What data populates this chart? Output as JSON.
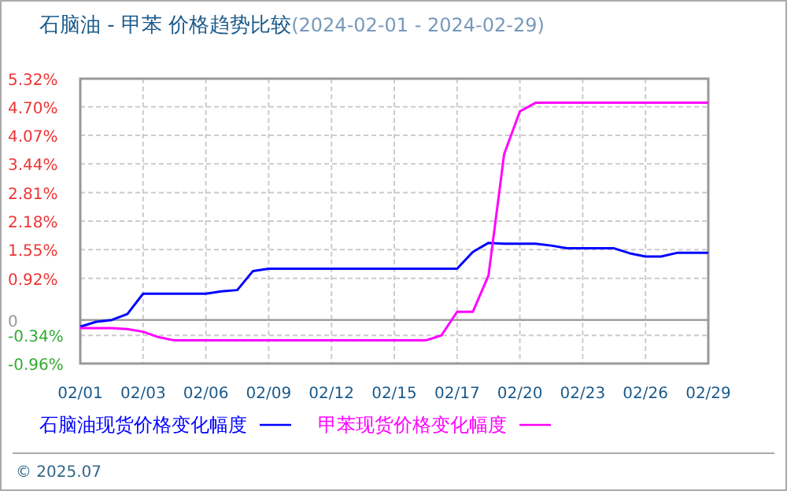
{
  "chart_data": {
    "type": "line",
    "title": "石脑油 - 甲苯 价格趋势比较",
    "subtitle": "(2024-02-01 - 2024-02-29)",
    "categories": [
      "02/01",
      null,
      null,
      null,
      "02/03",
      null,
      null,
      null,
      "02/06",
      null,
      null,
      null,
      "02/09",
      null,
      null,
      null,
      "02/12",
      null,
      null,
      null,
      "02/15",
      null,
      null,
      null,
      "02/17",
      null,
      null,
      null,
      "02/20",
      null,
      null,
      null,
      "02/23",
      null,
      null,
      null,
      "02/26",
      null,
      null,
      null,
      "02/29"
    ],
    "series": [
      {
        "name": "石脑油现货价格变化幅度",
        "color": "#0000ff",
        "values": [
          -0.15,
          -0.04,
          0,
          0.13,
          0.58,
          0.58,
          0.58,
          0.58,
          0.58,
          0.63,
          0.66,
          1.08,
          1.13,
          1.13,
          1.13,
          1.13,
          1.13,
          1.13,
          1.13,
          1.13,
          1.13,
          1.13,
          1.13,
          1.13,
          1.13,
          1.5,
          1.7,
          1.68,
          1.68,
          1.68,
          1.64,
          1.58,
          1.58,
          1.58,
          1.58,
          1.47,
          1.4,
          1.4,
          1.48,
          1.48,
          1.48
        ]
      },
      {
        "name": "甲苯现货价格变化幅度",
        "color": "#ff00ff",
        "values": [
          -0.18,
          -0.18,
          -0.18,
          -0.2,
          -0.26,
          -0.38,
          -0.45,
          -0.45,
          -0.45,
          -0.45,
          -0.45,
          -0.45,
          -0.45,
          -0.45,
          -0.45,
          -0.45,
          -0.45,
          -0.45,
          -0.45,
          -0.45,
          -0.45,
          -0.45,
          -0.45,
          -0.34,
          0.18,
          0.18,
          0.98,
          3.66,
          4.6,
          4.79,
          4.79,
          4.79,
          4.79,
          4.79,
          4.79,
          4.79,
          4.79,
          4.79,
          4.79,
          4.79,
          4.79
        ]
      }
    ],
    "ylim": [
      -0.96,
      5.32
    ],
    "yticks": [
      {
        "value": -0.96,
        "label": "-0.96%"
      },
      {
        "value": -0.34,
        "label": "-0.34%"
      },
      0,
      {
        "value": 0.92,
        "label": "0.92%"
      },
      {
        "value": 1.55,
        "label": "1.55%"
      },
      {
        "value": 2.18,
        "label": "2.18%"
      },
      {
        "value": 2.81,
        "label": "2.81%"
      },
      {
        "value": 3.44,
        "label": "3.44%"
      },
      {
        "value": 4.07,
        "label": "4.07%"
      },
      {
        "value": 4.7,
        "label": "4.70%"
      },
      {
        "value": 5.32,
        "label": "5.32%"
      }
    ],
    "ref_lines": [
      {
        "axis": "y",
        "value": 0,
        "color": "#999999"
      }
    ],
    "grid": true,
    "legend": "bottom",
    "line_style": "solid",
    "marker": "none",
    "annotations": [
      "© 2025.07"
    ]
  }
}
